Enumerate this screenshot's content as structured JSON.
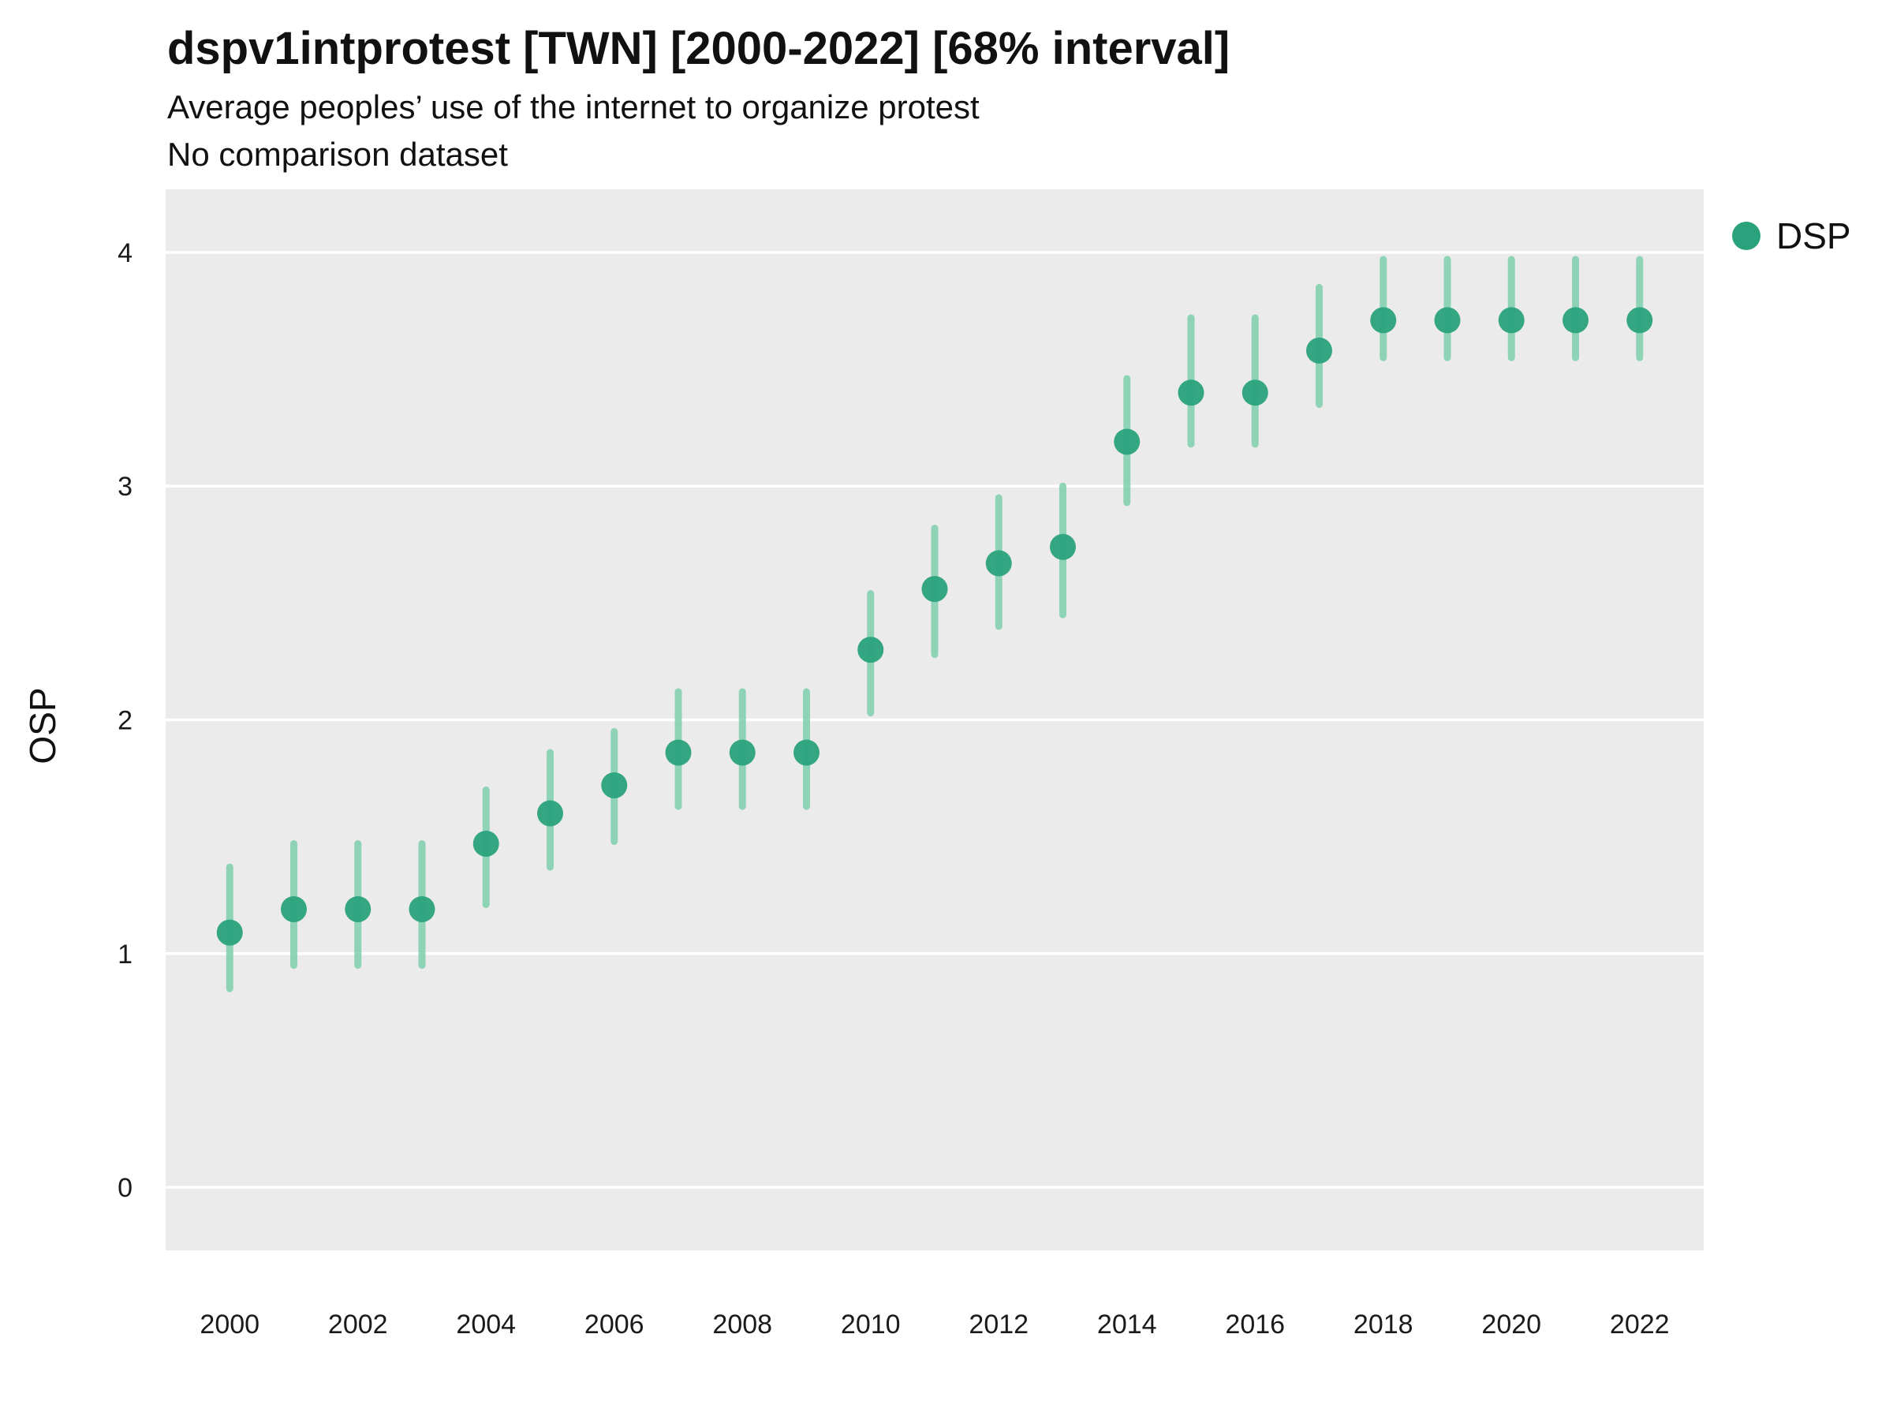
{
  "chart_data": {
    "type": "scatter",
    "title": "dspv1intprotest [TWN] [2000-2022] [68% interval]",
    "subtitle": "Average peoples’ use of the internet to organize protest",
    "note": "No comparison dataset",
    "ylabel": "OSP",
    "xlabel": "",
    "legend": [
      {
        "label": "DSP"
      }
    ],
    "legend_position": "right-top",
    "grid": true,
    "x_domain": [
      1999,
      2023
    ],
    "ylim": [
      -0.27,
      4.27
    ],
    "yticks": [
      0,
      1,
      2,
      3,
      4
    ],
    "xticks": [
      2000,
      2002,
      2004,
      2006,
      2008,
      2010,
      2012,
      2014,
      2016,
      2018,
      2020,
      2022
    ],
    "interval_label": "68% interval",
    "series": [
      {
        "name": "DSP",
        "x": [
          2000,
          2001,
          2002,
          2003,
          2004,
          2005,
          2006,
          2007,
          2008,
          2009,
          2010,
          2011,
          2012,
          2013,
          2014,
          2015,
          2016,
          2017,
          2018,
          2019,
          2020,
          2021,
          2022
        ],
        "y": [
          1.09,
          1.19,
          1.19,
          1.19,
          1.47,
          1.6,
          1.72,
          1.86,
          1.86,
          1.86,
          2.3,
          2.56,
          2.67,
          2.74,
          3.19,
          3.4,
          3.4,
          3.58,
          3.71,
          3.71,
          3.71,
          3.71,
          3.71
        ],
        "lo": [
          0.85,
          0.95,
          0.95,
          0.95,
          1.21,
          1.37,
          1.48,
          1.63,
          1.63,
          1.63,
          2.03,
          2.28,
          2.4,
          2.45,
          2.93,
          3.18,
          3.18,
          3.35,
          3.55,
          3.55,
          3.55,
          3.55,
          3.55
        ],
        "hi": [
          1.37,
          1.47,
          1.47,
          1.47,
          1.7,
          1.86,
          1.95,
          2.12,
          2.12,
          2.12,
          2.54,
          2.82,
          2.95,
          3.0,
          3.46,
          3.72,
          3.72,
          3.85,
          3.97,
          3.97,
          3.97,
          3.97,
          3.97
        ]
      }
    ],
    "colors": {
      "point": "#2aa27c",
      "interval": "#7fcfae",
      "plot_bg": "#ebebeb",
      "grid": "#ffffff",
      "tick_text": "#1a1a1a"
    }
  }
}
